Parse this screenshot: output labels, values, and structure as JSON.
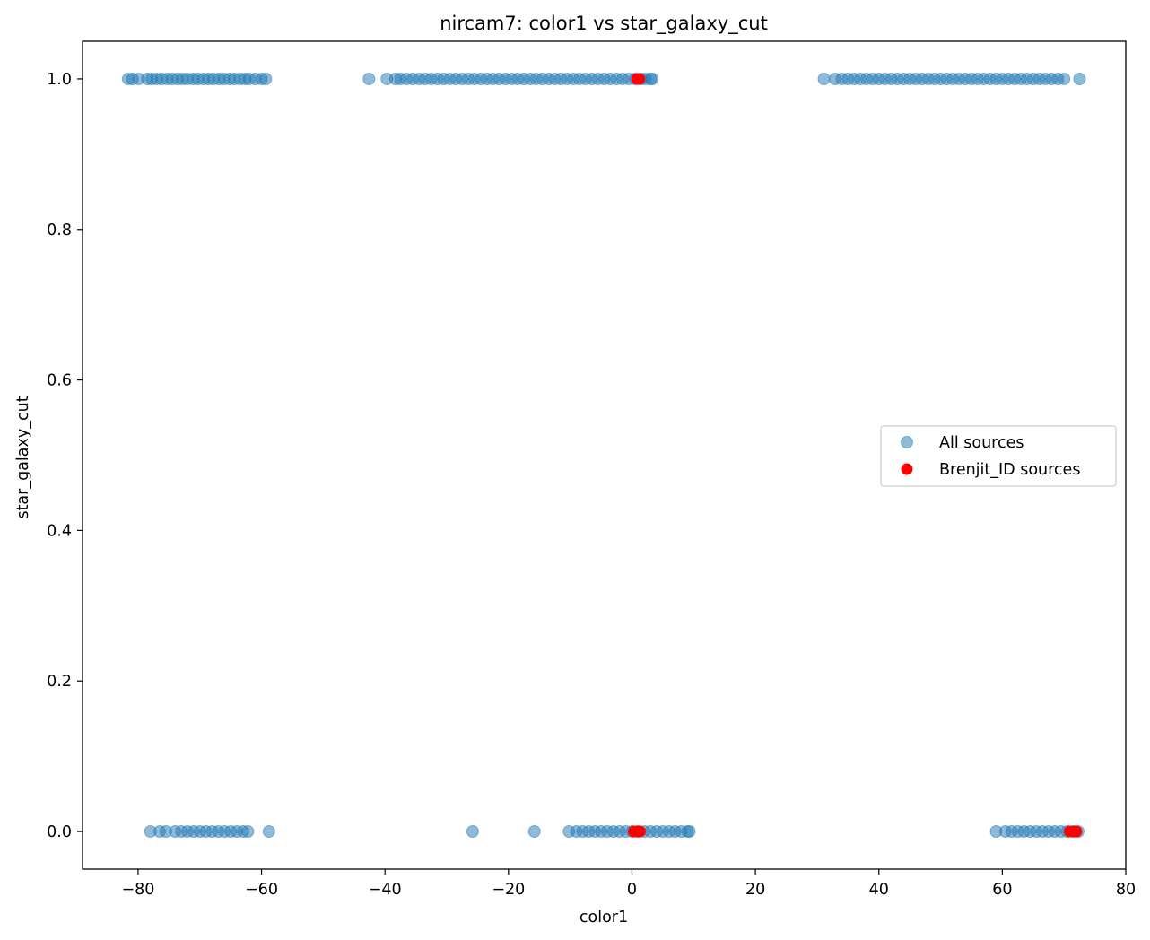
{
  "chart_data": {
    "type": "scatter",
    "title": "nircam7: color1 vs star_galaxy_cut",
    "xlabel": "color1",
    "ylabel": "star_galaxy_cut",
    "xlim": [
      -89,
      80
    ],
    "ylim": [
      -0.05,
      1.05
    ],
    "xticks": [
      -80,
      -60,
      -40,
      -20,
      0,
      20,
      40,
      60,
      80
    ],
    "yticks": [
      0.0,
      0.2,
      0.4,
      0.6,
      0.8,
      1.0
    ],
    "xtick_labels": [
      "−80",
      "−60",
      "−40",
      "−20",
      "0",
      "20",
      "40",
      "60",
      "80"
    ],
    "ytick_labels": [
      "0.0",
      "0.2",
      "0.4",
      "0.6",
      "0.8",
      "1.0"
    ],
    "grid": false,
    "legend_position": "center-right",
    "series": [
      {
        "name": "All sources",
        "color": "#1f77b4",
        "alpha": 0.5,
        "points": [
          [
            -81.6,
            1
          ],
          [
            -80.9,
            1
          ],
          [
            -79.9,
            1
          ],
          [
            -78.5,
            1
          ],
          [
            -77.8,
            1
          ],
          [
            -77.0,
            1
          ],
          [
            -76.2,
            1
          ],
          [
            -75.3,
            1
          ],
          [
            -74.5,
            1
          ],
          [
            -73.6,
            1
          ],
          [
            -72.8,
            1
          ],
          [
            -72.0,
            1
          ],
          [
            -71.1,
            1
          ],
          [
            -70.3,
            1
          ],
          [
            -69.4,
            1
          ],
          [
            -68.6,
            1
          ],
          [
            -67.8,
            1
          ],
          [
            -66.9,
            1
          ],
          [
            -66.1,
            1
          ],
          [
            -65.2,
            1
          ],
          [
            -64.4,
            1
          ],
          [
            -63.5,
            1
          ],
          [
            -62.7,
            1
          ],
          [
            -62.0,
            1
          ],
          [
            -61.0,
            1
          ],
          [
            -60.0,
            1
          ],
          [
            -59.3,
            1
          ],
          [
            -42.6,
            1
          ],
          [
            -39.7,
            1
          ],
          [
            -38.3,
            1
          ],
          [
            -37.5,
            1
          ],
          [
            -36.5,
            1
          ],
          [
            -35.5,
            1
          ],
          [
            -34.5,
            1
          ],
          [
            -33.5,
            1
          ],
          [
            -32.5,
            1
          ],
          [
            -31.5,
            1
          ],
          [
            -30.5,
            1
          ],
          [
            -29.5,
            1
          ],
          [
            -28.5,
            1
          ],
          [
            -27.5,
            1
          ],
          [
            -26.5,
            1
          ],
          [
            -25.5,
            1
          ],
          [
            -24.5,
            1
          ],
          [
            -23.5,
            1
          ],
          [
            -22.5,
            1
          ],
          [
            -21.5,
            1
          ],
          [
            -20.5,
            1
          ],
          [
            -19.5,
            1
          ],
          [
            -18.5,
            1
          ],
          [
            -17.5,
            1
          ],
          [
            -16.5,
            1
          ],
          [
            -15.5,
            1
          ],
          [
            -14.5,
            1
          ],
          [
            -13.5,
            1
          ],
          [
            -12.5,
            1
          ],
          [
            -11.5,
            1
          ],
          [
            -10.5,
            1
          ],
          [
            -9.5,
            1
          ],
          [
            -8.5,
            1
          ],
          [
            -7.5,
            1
          ],
          [
            -6.5,
            1
          ],
          [
            -5.5,
            1
          ],
          [
            -4.5,
            1
          ],
          [
            -3.5,
            1
          ],
          [
            -2.5,
            1
          ],
          [
            -1.5,
            1
          ],
          [
            -0.5,
            1
          ],
          [
            0.5,
            1
          ],
          [
            1.5,
            1
          ],
          [
            2.2,
            1
          ],
          [
            3.0,
            1
          ],
          [
            3.3,
            1
          ],
          [
            31.1,
            1
          ],
          [
            32.9,
            1
          ],
          [
            34.0,
            1
          ],
          [
            35.0,
            1
          ],
          [
            36.0,
            1
          ],
          [
            37.0,
            1
          ],
          [
            38.0,
            1
          ],
          [
            39.0,
            1
          ],
          [
            40.0,
            1
          ],
          [
            41.0,
            1
          ],
          [
            42.0,
            1
          ],
          [
            43.0,
            1
          ],
          [
            44.0,
            1
          ],
          [
            45.0,
            1
          ],
          [
            46.0,
            1
          ],
          [
            47.0,
            1
          ],
          [
            48.0,
            1
          ],
          [
            49.0,
            1
          ],
          [
            50.0,
            1
          ],
          [
            51.0,
            1
          ],
          [
            52.0,
            1
          ],
          [
            53.0,
            1
          ],
          [
            54.0,
            1
          ],
          [
            55.0,
            1
          ],
          [
            56.0,
            1
          ],
          [
            57.0,
            1
          ],
          [
            58.0,
            1
          ],
          [
            59.0,
            1
          ],
          [
            60.0,
            1
          ],
          [
            61.0,
            1
          ],
          [
            62.0,
            1
          ],
          [
            63.0,
            1
          ],
          [
            64.0,
            1
          ],
          [
            65.0,
            1
          ],
          [
            66.0,
            1
          ],
          [
            67.0,
            1
          ],
          [
            68.0,
            1
          ],
          [
            69.0,
            1
          ],
          [
            70.0,
            1
          ],
          [
            72.5,
            1
          ],
          [
            -78.0,
            0
          ],
          [
            -76.5,
            0
          ],
          [
            -75.5,
            0
          ],
          [
            -74.0,
            0
          ],
          [
            -73.0,
            0
          ],
          [
            -72.0,
            0
          ],
          [
            -71.0,
            0
          ],
          [
            -70.0,
            0
          ],
          [
            -69.0,
            0
          ],
          [
            -68.0,
            0
          ],
          [
            -67.0,
            0
          ],
          [
            -66.0,
            0
          ],
          [
            -65.0,
            0
          ],
          [
            -64.0,
            0
          ],
          [
            -63.0,
            0
          ],
          [
            -62.2,
            0
          ],
          [
            -58.8,
            0
          ],
          [
            -25.8,
            0
          ],
          [
            -15.8,
            0
          ],
          [
            -10.2,
            0
          ],
          [
            -9.0,
            0
          ],
          [
            -8.0,
            0
          ],
          [
            -7.0,
            0
          ],
          [
            -6.0,
            0
          ],
          [
            -5.0,
            0
          ],
          [
            -4.0,
            0
          ],
          [
            -3.0,
            0
          ],
          [
            -2.0,
            0
          ],
          [
            -1.0,
            0
          ],
          [
            0.0,
            0
          ],
          [
            1.0,
            0
          ],
          [
            2.0,
            0
          ],
          [
            3.0,
            0
          ],
          [
            4.0,
            0
          ],
          [
            5.0,
            0
          ],
          [
            6.0,
            0
          ],
          [
            7.0,
            0
          ],
          [
            8.0,
            0
          ],
          [
            9.0,
            0
          ],
          [
            9.3,
            0
          ],
          [
            59.0,
            0
          ],
          [
            60.5,
            0
          ],
          [
            61.5,
            0
          ],
          [
            62.5,
            0
          ],
          [
            63.5,
            0
          ],
          [
            64.5,
            0
          ],
          [
            65.5,
            0
          ],
          [
            66.5,
            0
          ],
          [
            67.5,
            0
          ],
          [
            68.5,
            0
          ],
          [
            69.5,
            0
          ],
          [
            70.5,
            0
          ],
          [
            71.5,
            0
          ],
          [
            72.3,
            0
          ]
        ]
      },
      {
        "name": "Brenjit_ID sources",
        "color": "#ff0000",
        "alpha": 1.0,
        "points": [
          [
            0.8,
            1
          ],
          [
            1.2,
            1
          ],
          [
            0.3,
            0
          ],
          [
            0.8,
            0
          ],
          [
            1.3,
            0
          ],
          [
            70.9,
            0
          ],
          [
            71.5,
            0
          ],
          [
            72.0,
            0
          ]
        ]
      }
    ]
  }
}
